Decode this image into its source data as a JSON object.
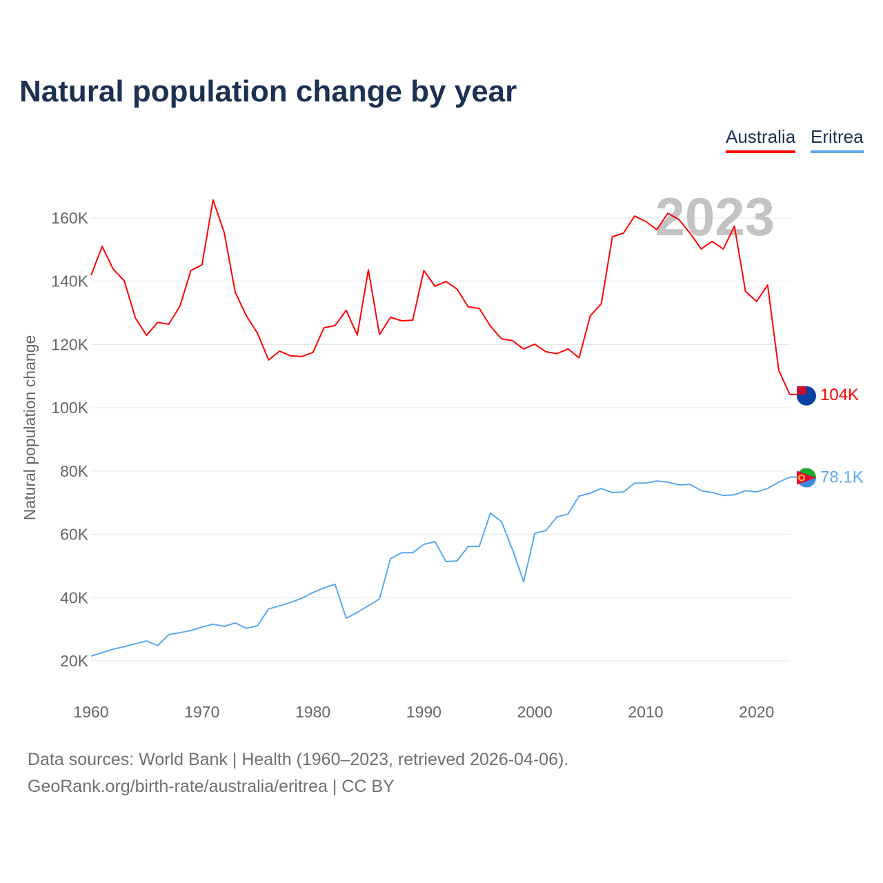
{
  "chart_data": {
    "type": "line",
    "title": "Natural population change by year",
    "xlabel": "",
    "ylabel": "Natural population change",
    "xlim": [
      1960,
      2023
    ],
    "ylim": [
      10000,
      175000
    ],
    "x_ticks": [
      "1960",
      "1970",
      "1980",
      "1990",
      "2000",
      "2010",
      "2020"
    ],
    "x_tick_values": [
      1960,
      1970,
      1980,
      1990,
      2000,
      2010,
      2020
    ],
    "y_ticks": [
      "20K",
      "40K",
      "60K",
      "80K",
      "100K",
      "120K",
      "140K",
      "160K"
    ],
    "y_tick_values": [
      20000,
      40000,
      60000,
      80000,
      100000,
      120000,
      140000,
      160000
    ],
    "grid": true,
    "legend_placement": "top-right",
    "year_label": "2023",
    "x": [
      1960,
      1961,
      1962,
      1963,
      1964,
      1965,
      1966,
      1967,
      1968,
      1969,
      1970,
      1971,
      1972,
      1973,
      1974,
      1975,
      1976,
      1977,
      1978,
      1979,
      1980,
      1981,
      1982,
      1983,
      1984,
      1985,
      1986,
      1987,
      1988,
      1989,
      1990,
      1991,
      1992,
      1993,
      1994,
      1995,
      1996,
      1997,
      1998,
      1999,
      2000,
      2001,
      2002,
      2003,
      2004,
      2005,
      2006,
      2007,
      2008,
      2009,
      2010,
      2011,
      2012,
      2013,
      2014,
      2015,
      2016,
      2017,
      2018,
      2019,
      2020,
      2021,
      2022,
      2023
    ],
    "series": [
      {
        "name": "Australia",
        "color": "#ff0000",
        "end_label": "104K",
        "values": [
          141900,
          151000,
          143800,
          140100,
          128400,
          122900,
          127000,
          126400,
          132000,
          143400,
          145200,
          165700,
          155400,
          136500,
          129100,
          123600,
          115100,
          117900,
          116400,
          116200,
          117500,
          125300,
          126000,
          130800,
          123000,
          143600,
          123100,
          128600,
          127500,
          127700,
          143400,
          138400,
          139900,
          137500,
          131900,
          131400,
          125800,
          121800,
          121200,
          118600,
          120100,
          117700,
          117100,
          118600,
          115800,
          129000,
          132900,
          154100,
          155200,
          160600,
          158900,
          156300,
          161500,
          159500,
          155200,
          150200,
          152600,
          150200,
          157400,
          136800,
          133600,
          138800,
          111800,
          104200
        ]
      },
      {
        "name": "Eritrea",
        "color": "#5ba8ef",
        "end_label": "78.1K",
        "values": [
          21500,
          22600,
          23700,
          24500,
          25400,
          26300,
          24800,
          28300,
          28900,
          29600,
          30700,
          31600,
          30900,
          32000,
          30300,
          31100,
          36400,
          37400,
          38500,
          39800,
          41600,
          43100,
          44200,
          33500,
          35300,
          37400,
          39600,
          52300,
          54200,
          54200,
          56800,
          57700,
          51400,
          51600,
          56200,
          56200,
          66700,
          64000,
          55100,
          45000,
          60300,
          61200,
          65500,
          66400,
          72100,
          73000,
          74500,
          73200,
          73400,
          76200,
          76200,
          76900,
          76500,
          75600,
          75800,
          73800,
          73200,
          72300,
          72500,
          73800,
          73400,
          74500,
          76500,
          78100
        ]
      }
    ]
  },
  "footer": {
    "line1": "Data sources: World Bank | Health (1960–2023, retrieved 2026-04-06).",
    "line2": "GeoRank.org/birth-rate/australia/eritrea | CC BY"
  }
}
